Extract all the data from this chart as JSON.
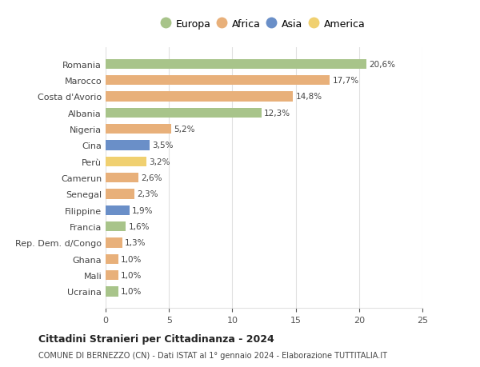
{
  "countries": [
    "Romania",
    "Marocco",
    "Costa d'Avorio",
    "Albania",
    "Nigeria",
    "Cina",
    "Perù",
    "Camerun",
    "Senegal",
    "Filippine",
    "Francia",
    "Rep. Dem. d/Congo",
    "Ghana",
    "Mali",
    "Ucraina"
  ],
  "values": [
    20.6,
    17.7,
    14.8,
    12.3,
    5.2,
    3.5,
    3.2,
    2.6,
    2.3,
    1.9,
    1.6,
    1.3,
    1.0,
    1.0,
    1.0
  ],
  "labels": [
    "20,6%",
    "17,7%",
    "14,8%",
    "12,3%",
    "5,2%",
    "3,5%",
    "3,2%",
    "2,6%",
    "2,3%",
    "1,9%",
    "1,6%",
    "1,3%",
    "1,0%",
    "1,0%",
    "1,0%"
  ],
  "continents": [
    "Europa",
    "Africa",
    "Africa",
    "Europa",
    "Africa",
    "Asia",
    "America",
    "Africa",
    "Africa",
    "Asia",
    "Europa",
    "Africa",
    "Africa",
    "Africa",
    "Europa"
  ],
  "continent_colors": {
    "Europa": "#a8c48a",
    "Africa": "#e8b07a",
    "Asia": "#6a8fc8",
    "America": "#f0d070"
  },
  "legend_order": [
    "Europa",
    "Africa",
    "Asia",
    "America"
  ],
  "title": "Cittadini Stranieri per Cittadinanza - 2024",
  "subtitle": "COMUNE DI BERNEZZO (CN) - Dati ISTAT al 1° gennaio 2024 - Elaborazione TUTTITALIA.IT",
  "xlim": [
    0,
    25
  ],
  "xticks": [
    0,
    5,
    10,
    15,
    20,
    25
  ],
  "background_color": "#ffffff",
  "grid_color": "#e0e0e0",
  "bar_height": 0.6
}
